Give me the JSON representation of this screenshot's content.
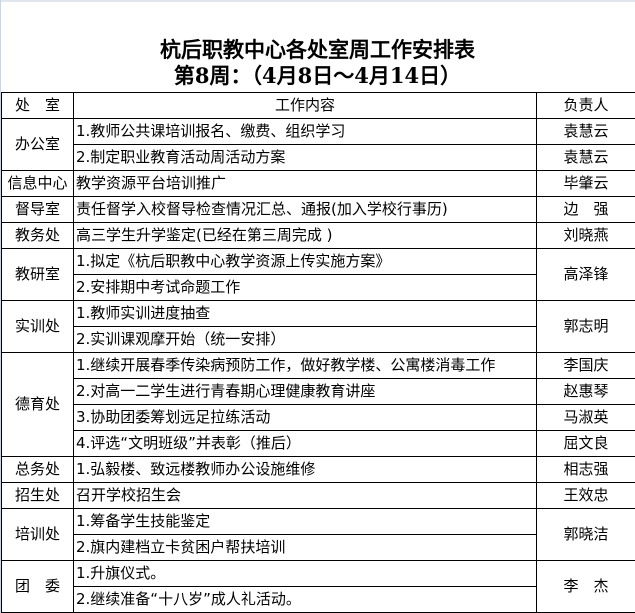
{
  "title": "杭后职教中心各处室周工作安排表",
  "subtitle": "第8周：（4月8日～4月14日）",
  "headers": {
    "dept": "处　室",
    "content": "工作内容",
    "owner": "负责人"
  },
  "groups": [
    {
      "dept": "办公室",
      "items": [
        {
          "content": "1.教师公共课培训报名、缴费、组织学习",
          "owner": "袁慧云"
        },
        {
          "content": "2.制定职业教育活动周活动方案",
          "owner": "袁慧云"
        }
      ]
    },
    {
      "dept": "信息中心",
      "items": [
        {
          "content": "教学资源平台培训推广",
          "owner": "毕肇云"
        }
      ]
    },
    {
      "dept": "督导室",
      "items": [
        {
          "content": "责任督学入校督导检查情况汇总、通报(加入学校行事历)",
          "owner": "边　强"
        }
      ]
    },
    {
      "dept": "教务处",
      "items": [
        {
          "content": "高三学生升学鉴定(已经在第三周完成 )",
          "owner": "刘晓燕"
        }
      ]
    },
    {
      "dept": "教研室",
      "owner": "高泽锋",
      "items": [
        {
          "content": "1.拟定《杭后职教中心教学资源上传实施方案》"
        },
        {
          "content": "2.安排期中考试命题工作"
        }
      ]
    },
    {
      "dept": "实训处",
      "owner": "郭志明",
      "items": [
        {
          "content": "1.教师实训进度抽查"
        },
        {
          "content": "2.实训课观摩开始（统一安排）"
        }
      ]
    },
    {
      "dept": "德育处",
      "items": [
        {
          "content": "1.继续开展春季传染病预防工作，做好教学楼、公寓楼消毒工作",
          "owner": "李国庆"
        },
        {
          "content": "2.对高一二学生进行青春期心理健康教育讲座",
          "owner": "赵惠琴"
        },
        {
          "content": "3.协助团委筹划远足拉练活动",
          "owner": "马淑英"
        },
        {
          "content": "4.评选“文明班级”并表彰（推后）",
          "owner": "屈文良"
        }
      ]
    },
    {
      "dept": "总务处",
      "items": [
        {
          "content": "1.弘毅楼、致远楼教师办公设施维修",
          "owner": "相志强"
        }
      ]
    },
    {
      "dept": "招生处",
      "items": [
        {
          "content": "召开学校招生会",
          "owner": "王效忠"
        }
      ]
    },
    {
      "dept": "培训处",
      "owner": "郭晓洁",
      "items": [
        {
          "content": "1.筹备学生技能鉴定"
        },
        {
          "content": "2.旗内建档立卡贫困户帮扶培训"
        }
      ]
    },
    {
      "dept": "团　委",
      "owner": "李　杰",
      "items": [
        {
          "content": "1.升旗仪式。"
        },
        {
          "content": "2.继续准备“十八岁”成人礼活动。"
        }
      ]
    }
  ]
}
